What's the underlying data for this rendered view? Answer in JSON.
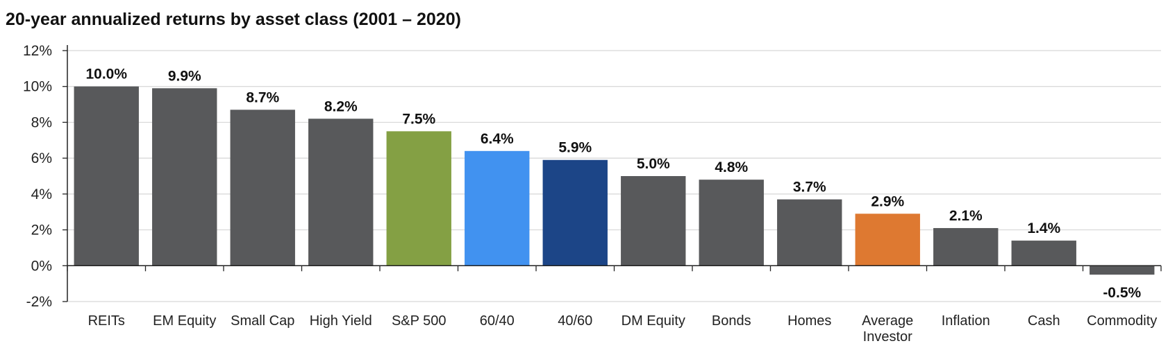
{
  "chart_data": {
    "type": "bar",
    "title": "20-year annualized returns by asset class (2001 – 2020)",
    "xlabel": "",
    "ylabel": "",
    "ylim": [
      -2,
      12
    ],
    "yticks": [
      12,
      10,
      8,
      6,
      4,
      2,
      0,
      -2
    ],
    "ytick_labels": [
      "12%",
      "10%",
      "8%",
      "6%",
      "4%",
      "2%",
      "0%",
      "-2%"
    ],
    "grid": true,
    "categories": [
      "REITs",
      "EM Equity",
      "Small Cap",
      "High Yield",
      "S&P 500",
      "60/40",
      "40/60",
      "DM Equity",
      "Bonds",
      "Homes",
      "Average Investor",
      "Inflation",
      "Cash",
      "Commodity"
    ],
    "category_lines": [
      [
        "REITs"
      ],
      [
        "EM Equity"
      ],
      [
        "Small Cap"
      ],
      [
        "High Yield"
      ],
      [
        "S&P 500"
      ],
      [
        "60/40"
      ],
      [
        "40/60"
      ],
      [
        "DM Equity"
      ],
      [
        "Bonds"
      ],
      [
        "Homes"
      ],
      [
        "Average",
        "Investor"
      ],
      [
        "Inflation"
      ],
      [
        "Cash"
      ],
      [
        "Commodity"
      ]
    ],
    "values": [
      10.0,
      9.9,
      8.7,
      8.2,
      7.5,
      6.4,
      5.9,
      5.0,
      4.8,
      3.7,
      2.9,
      2.1,
      1.4,
      -0.5
    ],
    "value_labels": [
      "10.0%",
      "9.9%",
      "8.7%",
      "8.2%",
      "7.5%",
      "6.4%",
      "5.9%",
      "5.0%",
      "4.8%",
      "3.7%",
      "2.9%",
      "2.1%",
      "1.4%",
      "-0.5%"
    ],
    "colors": [
      "#58595b",
      "#58595b",
      "#58595b",
      "#58595b",
      "#84a044",
      "#4192f0",
      "#1c4587",
      "#58595b",
      "#58595b",
      "#58595b",
      "#de7931",
      "#58595b",
      "#58595b",
      "#58595b"
    ]
  }
}
